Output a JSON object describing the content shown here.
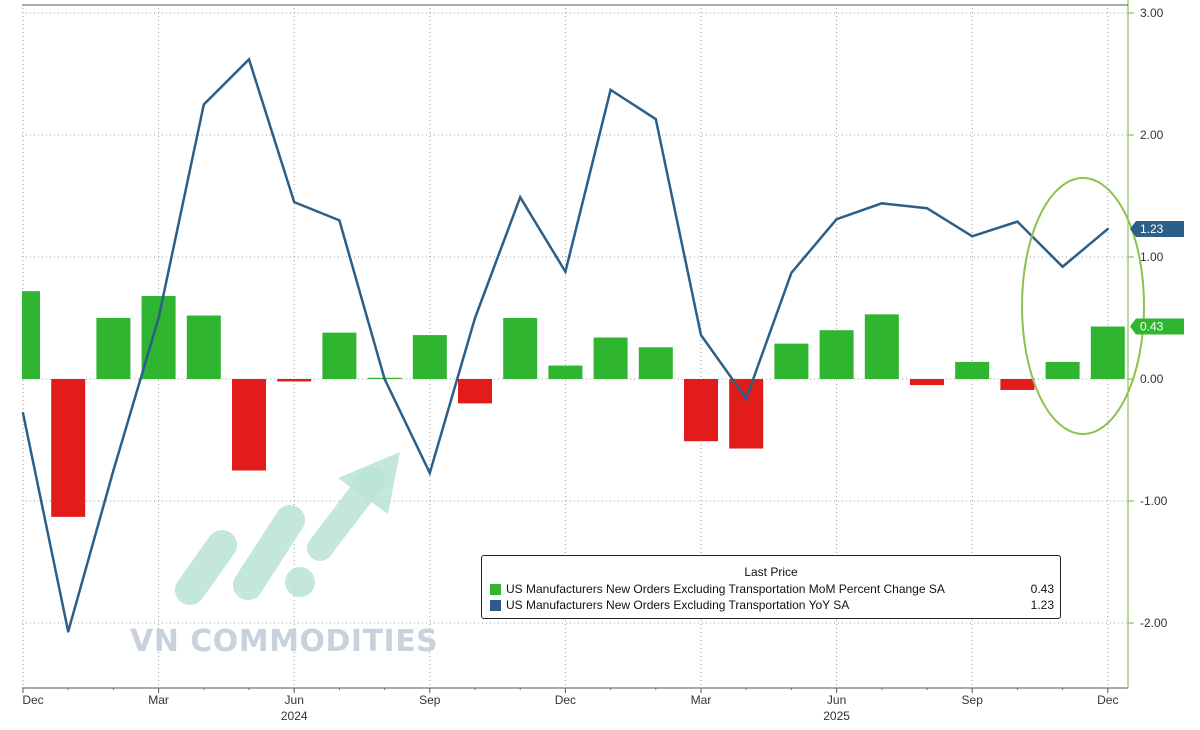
{
  "chart_data": {
    "type": "bar",
    "categories": [
      "Dec 2023",
      "Jan 2024",
      "Feb 2024",
      "Mar 2024",
      "Apr 2024",
      "May 2024",
      "Jun 2024",
      "Jul 2024",
      "Aug 2024",
      "Sep 2024",
      "Oct 2024",
      "Nov 2024",
      "Dec 2024",
      "Jan 2025",
      "Feb 2025",
      "Mar 2025",
      "Apr 2025",
      "May 2025",
      "Jun 2025",
      "Jul 2025",
      "Aug 2025",
      "Sep 2025",
      "Oct 2025",
      "Nov 2025",
      "Dec 2025"
    ],
    "series": [
      {
        "name": "US Manufacturers New Orders Excluding Transportation MoM Percent Change SA",
        "type": "bar",
        "color_positive": "#2fb52f",
        "color_negative": "#e21b1b",
        "values": [
          0.72,
          -1.13,
          0.5,
          0.68,
          0.52,
          -0.75,
          -0.02,
          0.38,
          0.01,
          0.36,
          -0.2,
          0.5,
          0.11,
          0.34,
          0.26,
          -0.51,
          -0.57,
          0.29,
          0.4,
          0.53,
          -0.05,
          0.14,
          -0.09,
          0.14,
          0.43
        ]
      },
      {
        "name": "US Manufacturers New Orders Excluding Transportation YoY SA",
        "type": "line",
        "color": "#2b5f88",
        "values": [
          -0.28,
          -2.07,
          -0.75,
          0.5,
          2.25,
          2.62,
          1.45,
          1.3,
          0.0,
          -0.77,
          0.5,
          1.49,
          0.88,
          2.37,
          2.13,
          0.36,
          -0.16,
          0.87,
          1.31,
          1.44,
          1.4,
          1.17,
          1.29,
          0.92,
          1.23
        ]
      }
    ],
    "ylim": [
      -2.55,
      3.0
    ],
    "yticks": [
      "3.00",
      "2.00",
      "1.00",
      "0.00",
      "-1.00",
      "-2.00"
    ],
    "xtick_labels": [
      "Dec",
      "Mar",
      "Jun",
      "Sep",
      "Dec",
      "Mar",
      "Jun",
      "Sep",
      "Dec"
    ],
    "year_labels": [
      "2024",
      "2025"
    ],
    "grid": true,
    "y_axis_side": "right",
    "last_value_tags": [
      {
        "label": "1.23",
        "color": "#2b5f88"
      },
      {
        "label": "0.43",
        "color": "#2fb52f"
      }
    ],
    "highlight_ellipse_color": "#8bc34a",
    "legend": {
      "title": "Last Price",
      "placement": "bottom-right",
      "entries": [
        {
          "name": "US Manufacturers New Orders Excluding Transportation MoM Percent Change SA",
          "value": "0.43",
          "color": "#2fb52f"
        },
        {
          "name": "US Manufacturers New Orders Excluding Transportation YoY SA",
          "value": "1.23",
          "color": "#2b5f88"
        }
      ]
    }
  },
  "watermark": {
    "text": "VN COMMODITIES",
    "color": "#c9d1dc",
    "logo_color": "#b9e3d3"
  }
}
